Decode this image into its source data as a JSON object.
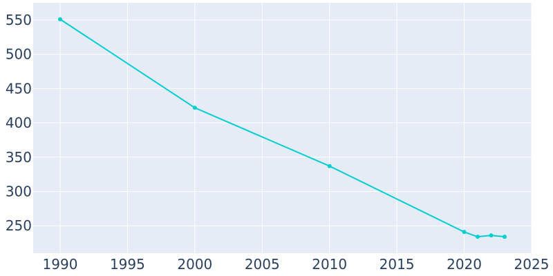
{
  "chart_data": {
    "type": "line",
    "title": "",
    "xlabel": "",
    "ylabel": "",
    "xlim": [
      1988,
      2025
    ],
    "ylim": [
      210,
      575
    ],
    "x_ticks": [
      1990,
      1995,
      2000,
      2005,
      2010,
      2015,
      2020,
      2025
    ],
    "y_ticks": [
      250,
      300,
      350,
      400,
      450,
      500,
      550
    ],
    "grid": true,
    "legend": "none",
    "series": [
      {
        "x": [
          1990,
          2000,
          2010,
          2020,
          2021,
          2022,
          2023
        ],
        "y": [
          551,
          422,
          337,
          241,
          234,
          236,
          234
        ]
      }
    ],
    "colors": {
      "plot_background": "#e5ecf6",
      "grid": "#ffffff",
      "line": "#00ced1",
      "tick_text": "#2a3f5f"
    }
  }
}
